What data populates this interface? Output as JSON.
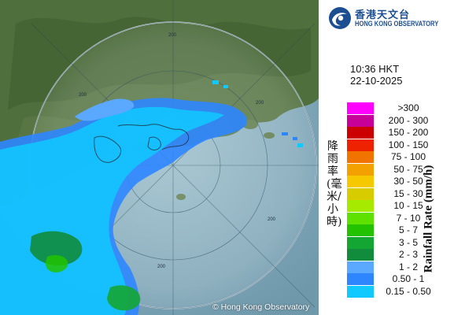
{
  "logo": {
    "name_zh": "香港天文台",
    "name_en": "HONG KONG OBSERVATORY",
    "icon": "observatory-swirl-icon",
    "color": "#1b4f91"
  },
  "timestamp": {
    "time": "10:36 HKT",
    "date": "22-10-2025"
  },
  "radar": {
    "range_labels": [
      "200",
      "200",
      "200",
      "200",
      "200"
    ],
    "copyright": "© Hong Kong Observatory"
  },
  "legend": {
    "title_zh": "降雨率(毫米/小時)",
    "title_en": "Rainfall Rate (mm/h)",
    "items": [
      {
        "label": ">300",
        "color": "#ff00ff"
      },
      {
        "label": "200 - 300",
        "color": "#c8009a"
      },
      {
        "label": "150 - 200",
        "color": "#cc0000"
      },
      {
        "label": "100 - 150",
        "color": "#ee2200"
      },
      {
        "label": "75 - 100",
        "color": "#f27400"
      },
      {
        "label": "50 - 75",
        "color": "#f2a100"
      },
      {
        "label": "30 - 50",
        "color": "#f5c800"
      },
      {
        "label": "15 - 30",
        "color": "#d6cc00"
      },
      {
        "label": "10 - 15",
        "color": "#a6ea00"
      },
      {
        "label": "7 - 10",
        "color": "#5ee000"
      },
      {
        "label": "5 - 7",
        "color": "#22c200"
      },
      {
        "label": "3 - 5",
        "color": "#14a632"
      },
      {
        "label": "2 - 3",
        "color": "#118c3c"
      },
      {
        "label": "1 - 2",
        "color": "#5aa8ff"
      },
      {
        "label": "0.50 - 1",
        "color": "#2e86ff"
      },
      {
        "label": "0.15 - 0.50",
        "color": "#11c9ff"
      }
    ]
  }
}
